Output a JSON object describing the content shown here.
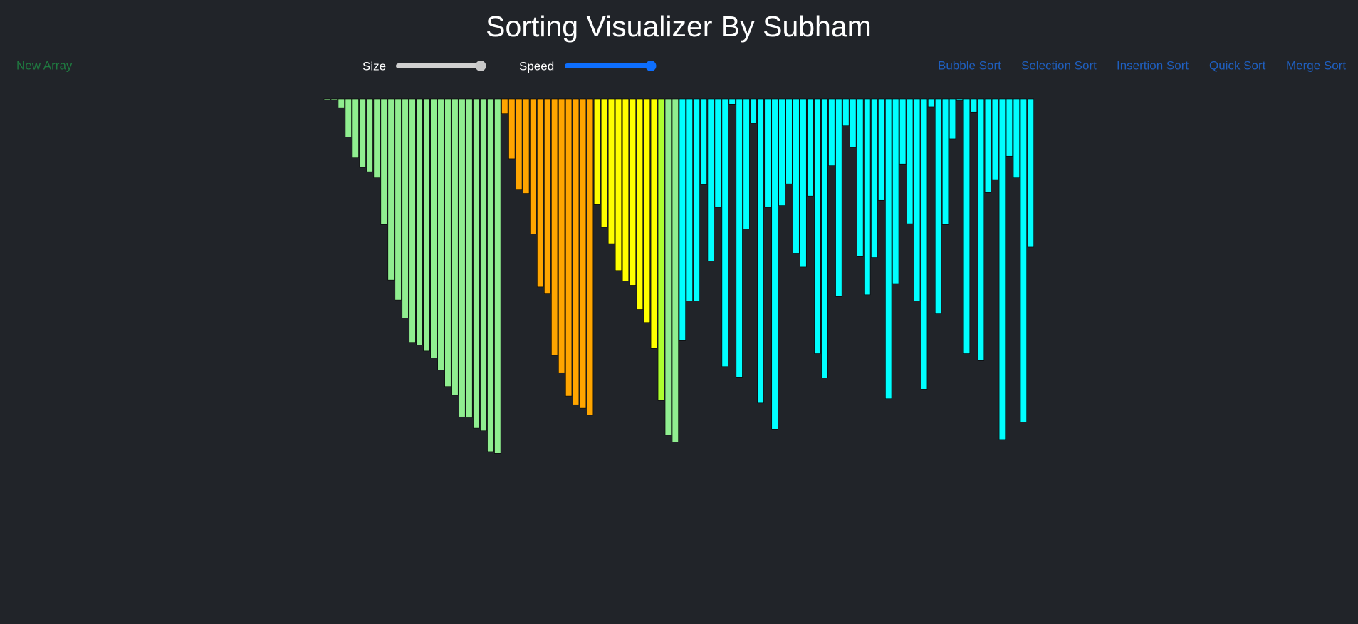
{
  "header": {
    "title": "Sorting Visualizer By Subham"
  },
  "controls": {
    "new_array": "New Array",
    "size_label": "Size",
    "speed_label": "Speed"
  },
  "algorithms": [
    "Bubble Sort",
    "Selection Sort",
    "Insertion Sort",
    "Quick Sort",
    "Merge Sort"
  ],
  "bar_groups": [
    {
      "color": "#90ee90",
      "values": [
        1,
        1,
        10,
        44,
        68,
        79,
        84,
        91,
        145,
        209,
        232,
        253,
        281,
        284,
        291,
        299,
        313,
        332,
        342,
        367,
        368,
        380,
        383,
        407,
        409
      ]
    },
    {
      "color": "#ffa500",
      "values": [
        17,
        69,
        105,
        109,
        156,
        217,
        225,
        296,
        316,
        343,
        353,
        357,
        365
      ]
    },
    {
      "color": "#ffff00",
      "values": [
        122,
        148,
        167,
        198,
        210,
        215,
        243,
        258,
        288
      ]
    },
    {
      "color": "#adff2f",
      "values": [
        348
      ]
    },
    {
      "color": "#90ee90",
      "values": [
        388,
        396
      ]
    },
    {
      "color": "#00ffff",
      "values": [
        279,
        233,
        233,
        99,
        187,
        125,
        309,
        6,
        321,
        150,
        28,
        351,
        125,
        381,
        123,
        98,
        178,
        194,
        112,
        294,
        322,
        77,
        228,
        31,
        56,
        182,
        226,
        183,
        117,
        346,
        213,
        75,
        144,
        233,
        335,
        9,
        248,
        145,
        46,
        2,
        294,
        15,
        302,
        108,
        93,
        393,
        66,
        91,
        373,
        171
      ]
    }
  ]
}
